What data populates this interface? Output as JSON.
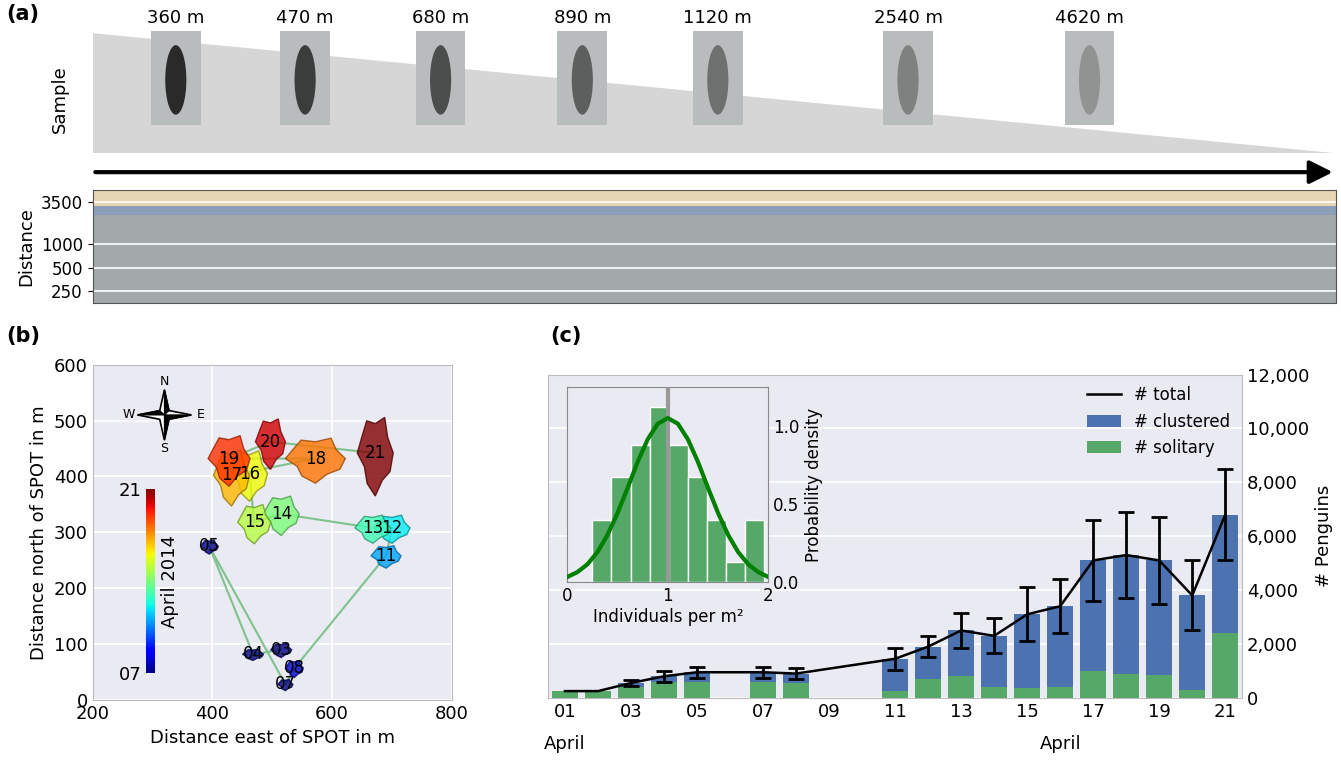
{
  "chart_data": [
    {
      "type": "image_strip",
      "panel": "(a)",
      "sample_label": "Sample",
      "categories": [
        "360 m",
        "470 m",
        "680 m",
        "890 m",
        "1120 m",
        "2540 m",
        "4620 m"
      ],
      "ylabel": "Distance",
      "log": "y",
      "ylim": [
        180,
        5000
      ],
      "yticks": [
        250,
        500,
        1000,
        3500
      ],
      "grid": true
    },
    {
      "type": "polygon_map",
      "panel": "(b)",
      "xlabel": "Distance east of SPOT in m",
      "ylabel": "Distance north of SPOT in m",
      "xlim": [
        200,
        800
      ],
      "xticks": [
        200,
        400,
        600,
        800
      ],
      "ylim": [
        0,
        600
      ],
      "yticks": [
        0,
        100,
        200,
        300,
        400,
        500,
        600
      ],
      "grid": true,
      "compass": [
        "N",
        "E",
        "S",
        "W"
      ],
      "labels": [
        "03",
        "04",
        "05",
        "07",
        "08",
        "11",
        "12",
        "13",
        "14",
        "15",
        "16",
        "17",
        "18",
        "19",
        "20",
        "21"
      ],
      "x": [
        515,
        468,
        395,
        522,
        537,
        690,
        700,
        668,
        515,
        470,
        462,
        432,
        572,
        428,
        497,
        672
      ],
      "y": [
        90,
        82,
        275,
        28,
        57,
        258,
        308,
        308,
        333,
        318,
        405,
        402,
        432,
        432,
        462,
        442
      ],
      "width_m": [
        35,
        35,
        30,
        25,
        30,
        50,
        60,
        60,
        60,
        55,
        60,
        60,
        100,
        70,
        50,
        60
      ],
      "height_m": [
        25,
        20,
        25,
        20,
        30,
        40,
        50,
        50,
        70,
        70,
        90,
        100,
        80,
        90,
        90,
        140
      ],
      "color": "#7fc28e",
      "colorbar": {
        "label": "April 2014",
        "lim": [
          7,
          21
        ],
        "ticks": [
          {
            "value": 7,
            "label": "07"
          },
          {
            "value": 21,
            "label": "21"
          }
        ]
      }
    },
    {
      "type": "bar",
      "panel": "(c)",
      "stacked": true,
      "x": [
        1,
        2,
        3,
        4,
        5,
        7,
        8,
        11,
        12,
        13,
        14,
        15,
        16,
        17,
        18,
        19,
        20,
        21
      ],
      "xlim": [
        0.5,
        21.5
      ],
      "xticks": [
        {
          "value": 1,
          "label": "01"
        },
        {
          "value": 3,
          "label": "03"
        },
        {
          "value": 5,
          "label": "05"
        },
        {
          "value": 7,
          "label": "07"
        },
        {
          "value": 9,
          "label": "09"
        },
        11,
        13,
        15,
        17,
        19,
        21
      ],
      "month_labels": [
        {
          "x": 1,
          "label": "April"
        },
        {
          "x": 16,
          "label": "April"
        }
      ],
      "ylabel": "# Penguins",
      "ylim": [
        0,
        12000
      ],
      "yticks": [
        0,
        {
          "value": 2000,
          "label": "2,000"
        },
        {
          "value": 4000,
          "label": "4,000"
        },
        {
          "value": 6000,
          "label": "6,000"
        },
        {
          "value": 8000,
          "label": "8,000"
        },
        {
          "value": 10000,
          "label": "10,000"
        },
        {
          "value": 12000,
          "label": "12,000"
        }
      ],
      "grid": true,
      "legend": "upper right",
      "series": [
        {
          "name": "# total",
          "type": "line",
          "color": "#000000",
          "values": [
            250,
            250,
            550,
            800,
            950,
            950,
            900,
            1450,
            1900,
            2500,
            2300,
            3100,
            3400,
            5100,
            5300,
            5100,
            3800,
            6800
          ],
          "errors": [
            null,
            null,
            100,
            200,
            200,
            200,
            200,
            400,
            400,
            650,
            650,
            1000,
            1000,
            1500,
            1600,
            1600,
            1300,
            1700
          ]
        },
        {
          "name": "# clustered",
          "type": "bar",
          "color": "#4c72b0",
          "values": [
            0,
            0,
            150,
            200,
            350,
            350,
            350,
            1200,
            1200,
            1700,
            1900,
            2750,
            3000,
            4100,
            4400,
            4250,
            3500,
            4400
          ]
        },
        {
          "name": "# solitary",
          "type": "bar",
          "color": "#55a868",
          "values": [
            250,
            250,
            400,
            600,
            600,
            600,
            550,
            250,
            700,
            800,
            400,
            350,
            400,
            1000,
            900,
            850,
            300,
            2400
          ]
        }
      ],
      "inset": {
        "type": "histogram",
        "xlabel": "Individuals per m²",
        "ylabel": "Probability density",
        "bins": [
          0.25,
          0.44,
          0.63,
          0.82,
          1.01,
          1.2,
          1.39,
          1.58,
          1.77,
          1.96
        ],
        "counts": [
          0.4,
          0.67,
          0.88,
          1.12,
          0.88,
          0.67,
          0.4,
          0.13,
          0.4
        ],
        "color": "#55a868",
        "xlim": [
          0,
          2
        ],
        "xticks": [
          0,
          1,
          2
        ],
        "ylim": [
          0,
          1.25
        ],
        "yticks": [
          {
            "value": 0,
            "label": "0.0"
          },
          0.5,
          {
            "value": 1,
            "label": "1.0"
          }
        ],
        "fit": {
          "color": "#008000",
          "x": [
            0,
            0.1,
            0.2,
            0.3,
            0.4,
            0.5,
            0.6,
            0.7,
            0.8,
            0.9,
            1.0,
            1.1,
            1.2,
            1.3,
            1.4,
            1.5,
            1.6,
            1.7,
            1.8,
            1.9,
            2.0
          ],
          "y": [
            0.033,
            0.064,
            0.114,
            0.192,
            0.302,
            0.442,
            0.603,
            0.769,
            0.914,
            1.014,
            1.05,
            1.014,
            0.914,
            0.769,
            0.603,
            0.442,
            0.302,
            0.192,
            0.114,
            0.064,
            0.033
          ]
        },
        "mean": 1.0
      }
    }
  ]
}
